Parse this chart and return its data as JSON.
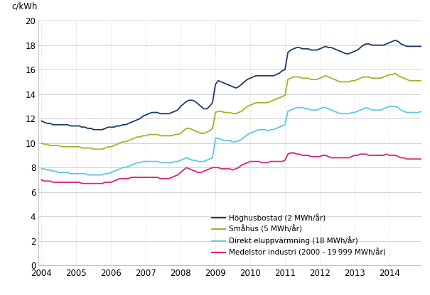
{
  "ylabel": "c/kWh",
  "ylim": [
    0,
    20
  ],
  "yticks": [
    0,
    2,
    4,
    6,
    8,
    10,
    12,
    14,
    16,
    18,
    20
  ],
  "xlim": [
    2003.92,
    2014.92
  ],
  "xtick_years": [
    2004,
    2005,
    2006,
    2007,
    2008,
    2009,
    2010,
    2011,
    2012,
    2013,
    2014
  ],
  "background_color": "#ffffff",
  "grid_color": "#cccccc",
  "series": {
    "hoghus": {
      "label": "Höghusbostad (2 MWh/år)",
      "color": "#1a3c6b",
      "linewidth": 1.3
    },
    "smahus": {
      "label": "Småhus (5 MWh/år)",
      "color": "#9db52a",
      "linewidth": 1.3
    },
    "direkt": {
      "label": "Direkt eluppvärmning (18 MWh/år)",
      "color": "#5bc8e8",
      "linewidth": 1.3
    },
    "industri": {
      "label": "Medelstor industri (2000 - 19 999 MWh/år)",
      "color": "#e0207a",
      "linewidth": 1.3
    }
  },
  "hoghus_y": [
    11.8,
    11.7,
    11.6,
    11.6,
    11.5,
    11.5,
    11.5,
    11.5,
    11.5,
    11.5,
    11.4,
    11.4,
    11.4,
    11.4,
    11.3,
    11.3,
    11.2,
    11.2,
    11.1,
    11.1,
    11.1,
    11.1,
    11.2,
    11.3,
    11.3,
    11.3,
    11.4,
    11.4,
    11.5,
    11.5,
    11.6,
    11.7,
    11.8,
    11.9,
    12.0,
    12.2,
    12.3,
    12.4,
    12.5,
    12.5,
    12.5,
    12.4,
    12.4,
    12.4,
    12.4,
    12.5,
    12.6,
    12.7,
    13.0,
    13.2,
    13.4,
    13.5,
    13.5,
    13.4,
    13.2,
    13.0,
    12.8,
    12.8,
    13.0,
    13.3,
    14.8,
    15.1,
    15.0,
    14.9,
    14.8,
    14.7,
    14.6,
    14.5,
    14.6,
    14.8,
    15.0,
    15.2,
    15.3,
    15.4,
    15.5,
    15.5,
    15.5,
    15.5,
    15.5,
    15.5,
    15.5,
    15.6,
    15.7,
    15.9,
    16.0,
    17.4,
    17.6,
    17.7,
    17.8,
    17.8,
    17.7,
    17.7,
    17.7,
    17.6,
    17.6,
    17.6,
    17.7,
    17.8,
    17.9,
    17.8,
    17.8,
    17.7,
    17.6,
    17.5,
    17.4,
    17.3,
    17.3,
    17.4,
    17.5,
    17.6,
    17.8,
    18.0,
    18.1,
    18.1,
    18.0,
    18.0,
    18.0,
    18.0,
    18.0,
    18.1,
    18.2,
    18.3,
    18.4,
    18.3,
    18.1,
    18.0,
    17.9,
    17.9,
    17.9,
    17.9,
    17.9,
    17.9
  ],
  "smahus_y": [
    10.0,
    9.9,
    9.9,
    9.8,
    9.8,
    9.8,
    9.8,
    9.7,
    9.7,
    9.7,
    9.7,
    9.7,
    9.7,
    9.7,
    9.6,
    9.6,
    9.6,
    9.6,
    9.5,
    9.5,
    9.5,
    9.5,
    9.6,
    9.7,
    9.7,
    9.8,
    9.9,
    10.0,
    10.1,
    10.1,
    10.2,
    10.3,
    10.4,
    10.5,
    10.5,
    10.6,
    10.6,
    10.7,
    10.7,
    10.7,
    10.7,
    10.6,
    10.6,
    10.6,
    10.6,
    10.6,
    10.7,
    10.7,
    10.8,
    11.0,
    11.2,
    11.2,
    11.1,
    11.0,
    10.9,
    10.8,
    10.8,
    10.9,
    11.0,
    11.2,
    12.5,
    12.6,
    12.6,
    12.5,
    12.5,
    12.5,
    12.4,
    12.4,
    12.5,
    12.6,
    12.8,
    13.0,
    13.1,
    13.2,
    13.3,
    13.3,
    13.3,
    13.3,
    13.3,
    13.4,
    13.5,
    13.6,
    13.7,
    13.8,
    13.9,
    15.2,
    15.3,
    15.4,
    15.4,
    15.4,
    15.3,
    15.3,
    15.3,
    15.2,
    15.2,
    15.2,
    15.3,
    15.4,
    15.5,
    15.4,
    15.3,
    15.2,
    15.1,
    15.0,
    15.0,
    15.0,
    15.0,
    15.1,
    15.1,
    15.2,
    15.3,
    15.4,
    15.4,
    15.4,
    15.3,
    15.3,
    15.3,
    15.3,
    15.4,
    15.5,
    15.6,
    15.6,
    15.7,
    15.5,
    15.4,
    15.3,
    15.2,
    15.1,
    15.1,
    15.1,
    15.1,
    15.1
  ],
  "direkt_y": [
    7.9,
    7.9,
    7.8,
    7.8,
    7.7,
    7.7,
    7.6,
    7.6,
    7.6,
    7.6,
    7.5,
    7.5,
    7.5,
    7.5,
    7.5,
    7.5,
    7.4,
    7.4,
    7.4,
    7.4,
    7.4,
    7.4,
    7.5,
    7.5,
    7.6,
    7.7,
    7.8,
    7.9,
    8.0,
    8.0,
    8.1,
    8.2,
    8.3,
    8.4,
    8.4,
    8.5,
    8.5,
    8.5,
    8.5,
    8.5,
    8.5,
    8.4,
    8.4,
    8.4,
    8.4,
    8.4,
    8.5,
    8.5,
    8.6,
    8.7,
    8.8,
    8.7,
    8.6,
    8.6,
    8.5,
    8.5,
    8.5,
    8.6,
    8.7,
    8.8,
    10.4,
    10.4,
    10.3,
    10.2,
    10.2,
    10.2,
    10.1,
    10.1,
    10.2,
    10.3,
    10.5,
    10.7,
    10.8,
    10.9,
    11.0,
    11.1,
    11.1,
    11.1,
    11.0,
    11.1,
    11.1,
    11.2,
    11.3,
    11.4,
    11.5,
    12.6,
    12.7,
    12.8,
    12.9,
    12.9,
    12.9,
    12.8,
    12.8,
    12.7,
    12.7,
    12.7,
    12.8,
    12.9,
    12.9,
    12.8,
    12.7,
    12.6,
    12.5,
    12.4,
    12.4,
    12.4,
    12.4,
    12.5,
    12.5,
    12.6,
    12.7,
    12.8,
    12.9,
    12.8,
    12.7,
    12.7,
    12.7,
    12.7,
    12.8,
    12.9,
    13.0,
    13.0,
    13.0,
    12.9,
    12.7,
    12.6,
    12.5,
    12.5,
    12.5,
    12.5,
    12.5,
    12.6
  ],
  "industri_y": [
    7.0,
    6.9,
    6.9,
    6.9,
    6.8,
    6.8,
    6.8,
    6.8,
    6.8,
    6.8,
    6.8,
    6.8,
    6.8,
    6.8,
    6.7,
    6.7,
    6.7,
    6.7,
    6.7,
    6.7,
    6.7,
    6.7,
    6.8,
    6.8,
    6.8,
    6.9,
    7.0,
    7.1,
    7.1,
    7.1,
    7.1,
    7.2,
    7.2,
    7.2,
    7.2,
    7.2,
    7.2,
    7.2,
    7.2,
    7.2,
    7.2,
    7.1,
    7.1,
    7.1,
    7.1,
    7.2,
    7.3,
    7.4,
    7.6,
    7.8,
    8.0,
    7.9,
    7.8,
    7.7,
    7.6,
    7.6,
    7.7,
    7.8,
    7.9,
    8.0,
    8.0,
    8.0,
    7.9,
    7.9,
    7.9,
    7.9,
    7.8,
    7.9,
    8.0,
    8.2,
    8.3,
    8.4,
    8.5,
    8.5,
    8.5,
    8.5,
    8.4,
    8.4,
    8.4,
    8.5,
    8.5,
    8.5,
    8.5,
    8.5,
    8.6,
    9.1,
    9.2,
    9.2,
    9.1,
    9.1,
    9.0,
    9.0,
    9.0,
    8.9,
    8.9,
    8.9,
    8.9,
    9.0,
    9.0,
    8.9,
    8.8,
    8.8,
    8.8,
    8.8,
    8.8,
    8.8,
    8.8,
    8.9,
    9.0,
    9.0,
    9.1,
    9.1,
    9.1,
    9.0,
    9.0,
    9.0,
    9.0,
    9.0,
    9.0,
    9.1,
    9.0,
    9.0,
    9.0,
    8.9,
    8.8,
    8.8,
    8.7,
    8.7,
    8.7,
    8.7,
    8.7,
    8.7
  ],
  "legend_fontsize": 7.5,
  "ylabel_fontsize": 8.5,
  "tick_fontsize": 8.5
}
